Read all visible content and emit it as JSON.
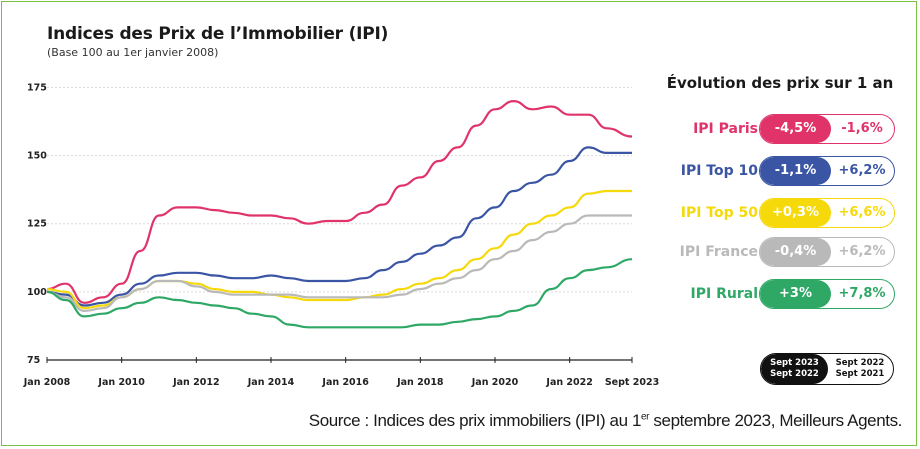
{
  "title": "Indices des Prix de l’Immobilier (IPI)",
  "subtitle": "(Base 100 au 1er janvier 2008)",
  "legend": {
    "title": "Évolution des prix sur 1 an",
    "rows": [
      {
        "name": "IPI Paris",
        "a": "-4,5%",
        "b": "-1,6%",
        "color": "#e0336a"
      },
      {
        "name": "IPI Top 10",
        "a": "-1,1%",
        "b": "+6,2%",
        "color": "#3a55a4"
      },
      {
        "name": "IPI Top 50",
        "a": "+0,3%",
        "b": "+6,6%",
        "color": "#f5d90a"
      },
      {
        "name": "IPI France",
        "a": "-0,4%",
        "b": "+6,2%",
        "color": "#b9b9b9"
      },
      {
        "name": "IPI Rural",
        "a": "+3%",
        "b": "+7,8%",
        "color": "#2fa866"
      }
    ],
    "period_a_1": "Sept 2023",
    "period_a_2": "Sept 2022",
    "period_b_1": "Sept 2022",
    "period_b_2": "Sept 2021"
  },
  "source_prefix": "Source : Indices des prix immobiliers (IPI) au 1",
  "source_sup": "er",
  "source_suffix": " septembre 2023, Meilleurs Agents.",
  "chart_data": {
    "type": "line",
    "x": [
      2008.0,
      2008.5,
      2009.0,
      2009.5,
      2010.0,
      2010.5,
      2011.0,
      2011.5,
      2012.0,
      2012.5,
      2013.0,
      2013.5,
      2014.0,
      2014.5,
      2015.0,
      2015.5,
      2016.0,
      2016.5,
      2017.0,
      2017.5,
      2018.0,
      2018.5,
      2019.0,
      2019.5,
      2020.0,
      2020.5,
      2021.0,
      2021.5,
      2022.0,
      2022.5,
      2023.0,
      2023.67
    ],
    "xticks": [
      "Jan 2008",
      "Jan 2010",
      "Jan 2012",
      "Jan 2014",
      "Jan 2016",
      "Jan 2018",
      "Jan 2020",
      "Jan 2022",
      "Sept 2023"
    ],
    "xtick_values": [
      2008.0,
      2010.0,
      2012.0,
      2014.0,
      2016.0,
      2018.0,
      2020.0,
      2022.0,
      2023.67
    ],
    "yticks": [
      "75",
      "100",
      "125",
      "150",
      "175"
    ],
    "ytick_values": [
      75,
      100,
      125,
      150,
      175
    ],
    "ylim": [
      75,
      177
    ],
    "xlim": [
      2008.0,
      2023.67
    ],
    "grid": "horizontal",
    "series": [
      {
        "name": "IPI Paris",
        "color": "#e0336a",
        "values": [
          101,
          103,
          96,
          98,
          103,
          115,
          128,
          131,
          131,
          130,
          129,
          128,
          128,
          127,
          125,
          126,
          126,
          129,
          132,
          139,
          142,
          148,
          153,
          161,
          167,
          170,
          167,
          168,
          165,
          165,
          160,
          157
        ]
      },
      {
        "name": "IPI Top 10",
        "color": "#3a55a4",
        "values": [
          100,
          99,
          95,
          96,
          99,
          103,
          106,
          107,
          107,
          106,
          105,
          105,
          106,
          105,
          104,
          104,
          104,
          105,
          108,
          111,
          114,
          117,
          120,
          127,
          131,
          137,
          140,
          143,
          148,
          153,
          151,
          151
        ]
      },
      {
        "name": "IPI Top 50",
        "color": "#f5d90a",
        "values": [
          101,
          100,
          94,
          95,
          98,
          101,
          104,
          104,
          103,
          101,
          100,
          100,
          99,
          98,
          97,
          97,
          97,
          98,
          99,
          101,
          103,
          105,
          108,
          112,
          116,
          121,
          125,
          128,
          131,
          136,
          137,
          137
        ]
      },
      {
        "name": "IPI France",
        "color": "#b9b9b9",
        "values": [
          100,
          98,
          93,
          94,
          98,
          101,
          104,
          104,
          102,
          100,
          99,
          99,
          99,
          99,
          98,
          98,
          98,
          98,
          98,
          99,
          101,
          103,
          105,
          108,
          112,
          115,
          119,
          122,
          125,
          128,
          128,
          128
        ]
      },
      {
        "name": "IPI Rural",
        "color": "#2fa866",
        "values": [
          100,
          97,
          91,
          92,
          94,
          96,
          98,
          97,
          96,
          95,
          94,
          92,
          91,
          88,
          87,
          87,
          87,
          87,
          87,
          87,
          88,
          88,
          89,
          90,
          91,
          93,
          95,
          101,
          105,
          108,
          109,
          112
        ]
      }
    ]
  }
}
